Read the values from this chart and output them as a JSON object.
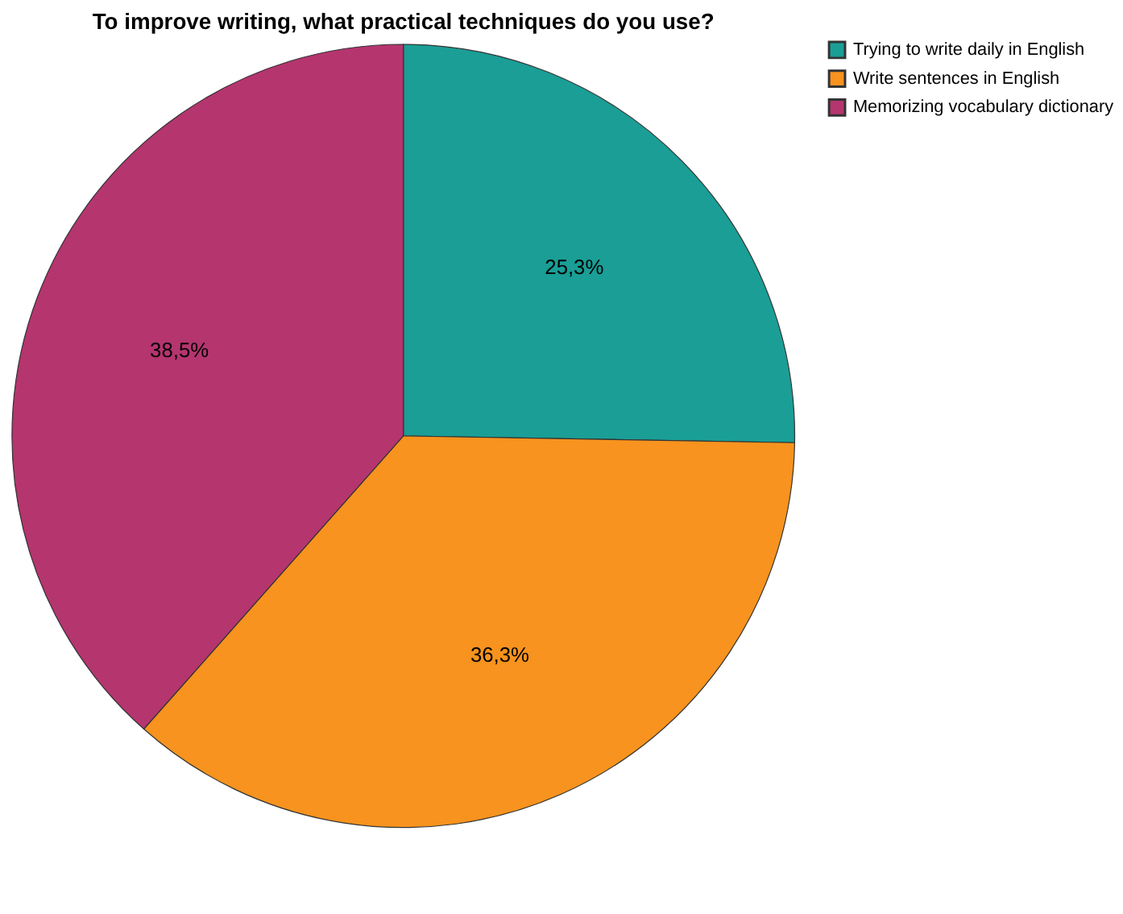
{
  "chart_data": {
    "type": "pie",
    "title": "To improve writing, what practical techniques do you use?",
    "categories": [
      "Trying to write daily in English",
      "Write sentences in English",
      "Memorizing vocabulary dictionary"
    ],
    "values": [
      25.3,
      36.3,
      38.5
    ],
    "colors": [
      "#1a9e96",
      "#f7931e",
      "#b5356f"
    ],
    "value_labels": [
      "25,3%",
      "36,3%",
      "38,5%"
    ],
    "legend": "top right"
  }
}
